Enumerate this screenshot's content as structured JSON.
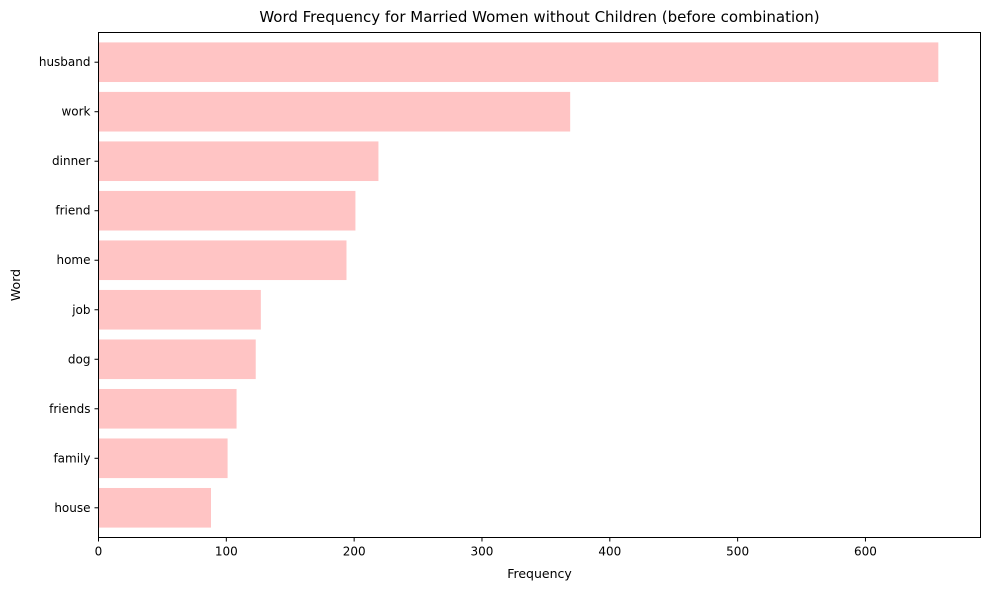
{
  "chart_data": {
    "type": "bar",
    "orientation": "horizontal",
    "title": "Word Frequency for Married Women without Children (before combination)",
    "xlabel": "Frequency",
    "ylabel": "Word",
    "categories": [
      "husband",
      "work",
      "dinner",
      "friend",
      "home",
      "job",
      "dog",
      "friends",
      "family",
      "house"
    ],
    "values": [
      657,
      369,
      219,
      201,
      194,
      127,
      123,
      108,
      101,
      88
    ],
    "xlim": [
      0,
      690
    ],
    "xticks": [
      0,
      100,
      200,
      300,
      400,
      500,
      600
    ],
    "grid": false,
    "legend": "none",
    "bar_color": "#ffc4c4"
  }
}
